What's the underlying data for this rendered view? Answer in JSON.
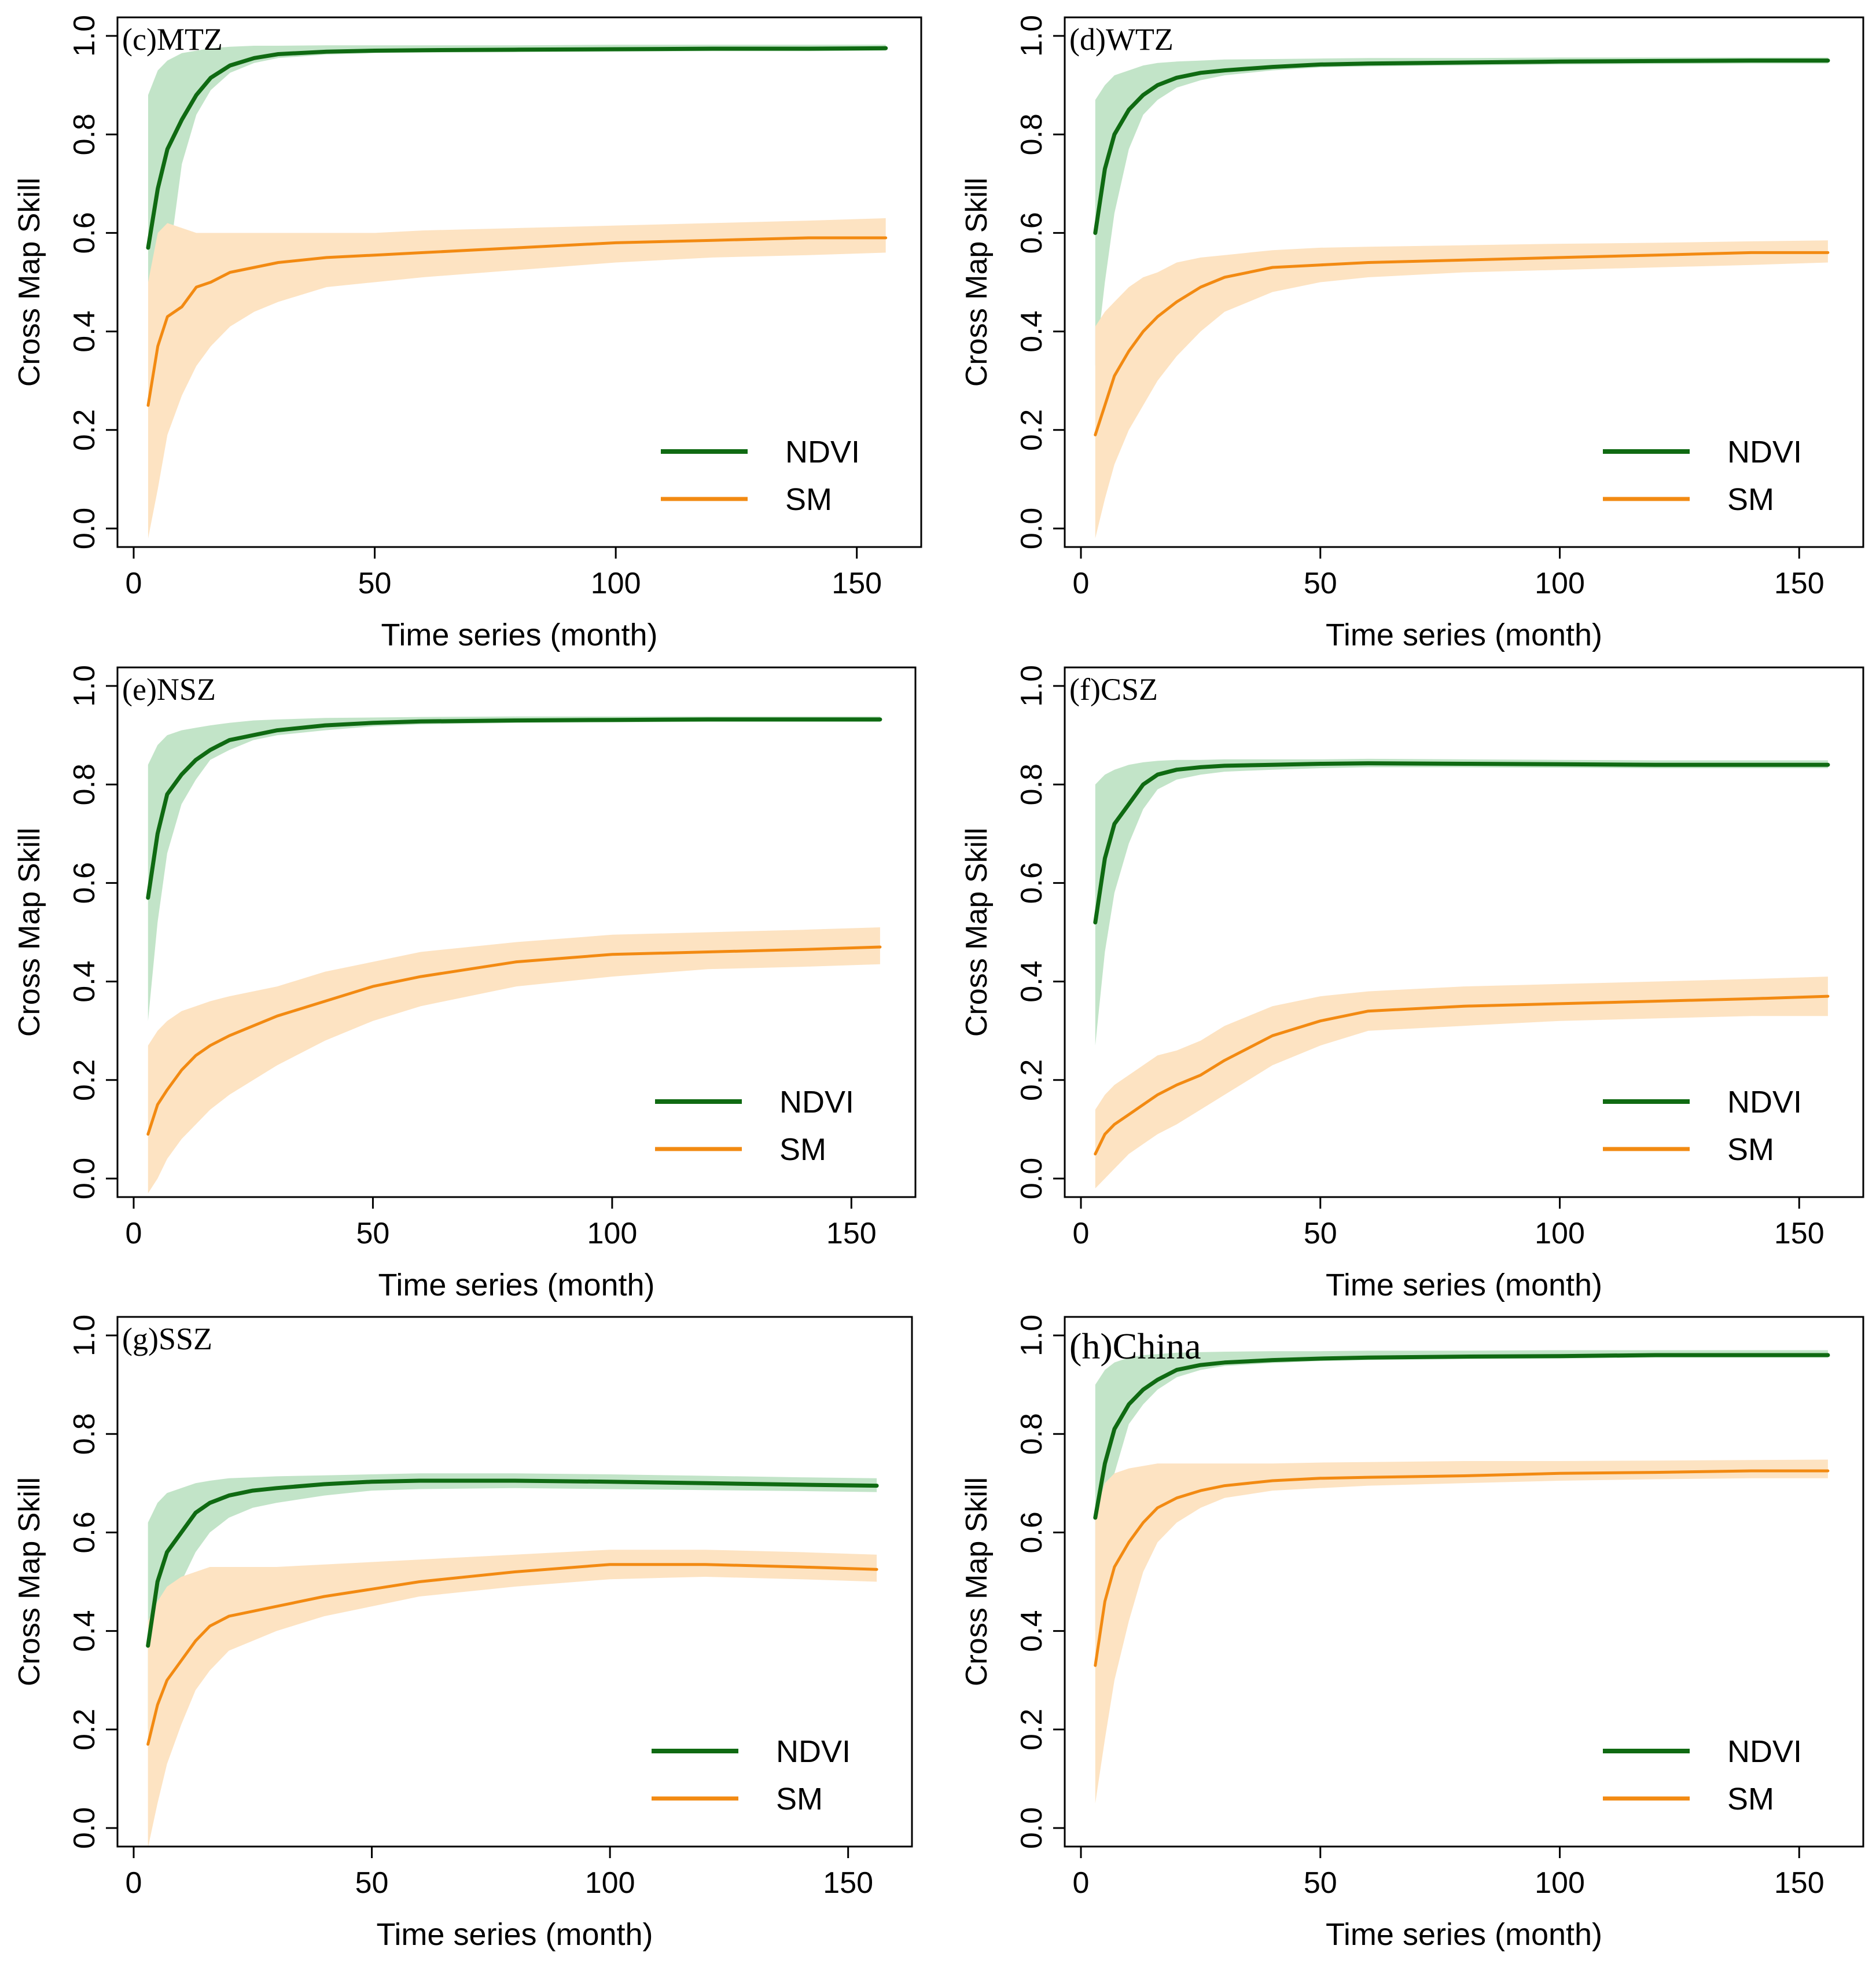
{
  "figure": {
    "y_axis_label": "Cross Map Skill",
    "x_axis_label": "Time series (month)",
    "x_ticks": [
      "0",
      "50",
      "100",
      "150"
    ],
    "y_ticks": [
      "0.0",
      "0.2",
      "0.4",
      "0.6",
      "0.8",
      "1.0"
    ],
    "legend": [
      "NDVI",
      "SM"
    ]
  },
  "colors": {
    "ndvi_line": "#0f6a12",
    "ndvi_band": "#c2e4c8",
    "sm_line": "#f28a12",
    "sm_band": "#fde3c2",
    "axis": "#000000"
  },
  "chart_data": [
    {
      "type": "line",
      "panel": "(c)MTZ",
      "title": "(c)MTZ",
      "xlabel": "Time series (month)",
      "ylabel": "Cross Map Skill",
      "xlim": [
        0,
        160
      ],
      "ylim": [
        0,
        1
      ],
      "legend_position": "bottom-right",
      "series": [
        {
          "name": "NDVI",
          "x": [
            3,
            5,
            7,
            10,
            13,
            16,
            20,
            25,
            30,
            40,
            50,
            60,
            80,
            100,
            120,
            140,
            156
          ],
          "values": [
            0.57,
            0.69,
            0.77,
            0.83,
            0.88,
            0.915,
            0.94,
            0.955,
            0.963,
            0.968,
            0.97,
            0.971,
            0.972,
            0.973,
            0.974,
            0.974,
            0.975
          ],
          "lower": [
            0.02,
            0.2,
            0.52,
            0.74,
            0.84,
            0.89,
            0.925,
            0.945,
            0.955,
            0.962,
            0.965,
            0.966,
            0.967,
            0.968,
            0.969,
            0.969,
            0.97
          ],
          "upper": [
            0.88,
            0.93,
            0.95,
            0.965,
            0.97,
            0.975,
            0.978,
            0.98,
            0.98,
            0.981,
            0.981,
            0.981,
            0.981,
            0.982,
            0.982,
            0.982,
            0.982
          ]
        },
        {
          "name": "SM",
          "x": [
            3,
            5,
            7,
            10,
            13,
            16,
            20,
            25,
            30,
            40,
            50,
            60,
            80,
            100,
            120,
            140,
            156
          ],
          "values": [
            0.25,
            0.37,
            0.43,
            0.45,
            0.49,
            0.5,
            0.52,
            0.53,
            0.54,
            0.55,
            0.555,
            0.56,
            0.57,
            0.58,
            0.585,
            0.59,
            0.59
          ],
          "lower": [
            -0.02,
            0.08,
            0.19,
            0.27,
            0.33,
            0.37,
            0.41,
            0.44,
            0.46,
            0.49,
            0.5,
            0.51,
            0.525,
            0.54,
            0.55,
            0.555,
            0.56
          ],
          "upper": [
            0.5,
            0.6,
            0.62,
            0.61,
            0.6,
            0.6,
            0.6,
            0.6,
            0.6,
            0.6,
            0.6,
            0.605,
            0.61,
            0.615,
            0.62,
            0.625,
            0.63
          ]
        }
      ]
    },
    {
      "type": "line",
      "panel": "(d)WTZ",
      "title": "(d)WTZ",
      "xlabel": "Time series (month)",
      "ylabel": "Cross Map Skill",
      "xlim": [
        0,
        160
      ],
      "ylim": [
        0,
        1
      ],
      "legend_position": "bottom-right",
      "series": [
        {
          "name": "NDVI",
          "x": [
            3,
            5,
            7,
            10,
            13,
            16,
            20,
            25,
            30,
            40,
            50,
            60,
            80,
            100,
            120,
            140,
            156
          ],
          "values": [
            0.6,
            0.73,
            0.8,
            0.85,
            0.88,
            0.9,
            0.915,
            0.925,
            0.93,
            0.937,
            0.942,
            0.944,
            0.946,
            0.948,
            0.949,
            0.95,
            0.95
          ],
          "lower": [
            0.33,
            0.5,
            0.64,
            0.77,
            0.84,
            0.87,
            0.895,
            0.91,
            0.92,
            0.93,
            0.936,
            0.938,
            0.94,
            0.942,
            0.943,
            0.944,
            0.944
          ],
          "upper": [
            0.87,
            0.9,
            0.92,
            0.93,
            0.94,
            0.945,
            0.948,
            0.95,
            0.952,
            0.953,
            0.954,
            0.955,
            0.955,
            0.956,
            0.956,
            0.956,
            0.956
          ]
        },
        {
          "name": "SM",
          "x": [
            3,
            5,
            7,
            10,
            13,
            16,
            20,
            25,
            30,
            40,
            50,
            60,
            80,
            100,
            120,
            140,
            156
          ],
          "values": [
            0.19,
            0.25,
            0.31,
            0.36,
            0.4,
            0.43,
            0.46,
            0.49,
            0.51,
            0.53,
            0.535,
            0.54,
            0.545,
            0.55,
            0.555,
            0.56,
            0.56
          ],
          "lower": [
            -0.02,
            0.06,
            0.13,
            0.2,
            0.25,
            0.3,
            0.35,
            0.4,
            0.44,
            0.48,
            0.5,
            0.51,
            0.52,
            0.525,
            0.53,
            0.535,
            0.54
          ],
          "upper": [
            0.41,
            0.44,
            0.46,
            0.49,
            0.51,
            0.52,
            0.54,
            0.55,
            0.555,
            0.565,
            0.57,
            0.572,
            0.575,
            0.578,
            0.58,
            0.583,
            0.585
          ]
        }
      ]
    },
    {
      "type": "line",
      "panel": "(e)NSZ",
      "title": "(e)NSZ",
      "xlabel": "Time series (month)",
      "ylabel": "Cross Map Skill",
      "xlim": [
        0,
        160
      ],
      "ylim": [
        0,
        1
      ],
      "legend_position": "bottom-right",
      "series": [
        {
          "name": "NDVI",
          "x": [
            3,
            5,
            7,
            10,
            13,
            16,
            20,
            25,
            30,
            40,
            50,
            60,
            80,
            100,
            120,
            140,
            156
          ],
          "values": [
            0.57,
            0.7,
            0.78,
            0.82,
            0.85,
            0.87,
            0.89,
            0.9,
            0.91,
            0.92,
            0.925,
            0.928,
            0.93,
            0.931,
            0.932,
            0.932,
            0.932
          ],
          "lower": [
            0.32,
            0.52,
            0.66,
            0.76,
            0.81,
            0.85,
            0.87,
            0.89,
            0.9,
            0.91,
            0.918,
            0.922,
            0.925,
            0.926,
            0.927,
            0.927,
            0.927
          ],
          "upper": [
            0.84,
            0.88,
            0.9,
            0.91,
            0.915,
            0.92,
            0.925,
            0.93,
            0.932,
            0.935,
            0.936,
            0.937,
            0.938,
            0.938,
            0.938,
            0.938,
            0.938
          ]
        },
        {
          "name": "SM",
          "x": [
            3,
            5,
            7,
            10,
            13,
            16,
            20,
            25,
            30,
            40,
            50,
            60,
            80,
            100,
            120,
            140,
            156
          ],
          "values": [
            0.09,
            0.15,
            0.18,
            0.22,
            0.25,
            0.27,
            0.29,
            0.31,
            0.33,
            0.36,
            0.39,
            0.41,
            0.44,
            0.455,
            0.46,
            0.465,
            0.47
          ],
          "lower": [
            -0.03,
            0.0,
            0.04,
            0.08,
            0.11,
            0.14,
            0.17,
            0.2,
            0.23,
            0.28,
            0.32,
            0.35,
            0.39,
            0.41,
            0.425,
            0.43,
            0.435
          ],
          "upper": [
            0.27,
            0.3,
            0.32,
            0.34,
            0.35,
            0.36,
            0.37,
            0.38,
            0.39,
            0.42,
            0.44,
            0.46,
            0.48,
            0.495,
            0.5,
            0.505,
            0.51
          ]
        }
      ]
    },
    {
      "type": "line",
      "panel": "(f)CSZ",
      "title": "(f)CSZ",
      "xlabel": "Time series (month)",
      "ylabel": "Cross Map Skill",
      "xlim": [
        0,
        160
      ],
      "ylim": [
        0,
        1
      ],
      "legend_position": "bottom-right",
      "series": [
        {
          "name": "NDVI",
          "x": [
            3,
            5,
            7,
            10,
            13,
            16,
            20,
            25,
            30,
            40,
            50,
            60,
            80,
            100,
            120,
            140,
            156
          ],
          "values": [
            0.52,
            0.65,
            0.72,
            0.76,
            0.8,
            0.82,
            0.83,
            0.835,
            0.838,
            0.84,
            0.842,
            0.843,
            0.842,
            0.841,
            0.84,
            0.84,
            0.84
          ],
          "lower": [
            0.27,
            0.46,
            0.58,
            0.68,
            0.75,
            0.79,
            0.81,
            0.82,
            0.826,
            0.83,
            0.833,
            0.835,
            0.835,
            0.834,
            0.833,
            0.833,
            0.833
          ],
          "upper": [
            0.8,
            0.82,
            0.83,
            0.84,
            0.845,
            0.848,
            0.85,
            0.85,
            0.851,
            0.851,
            0.851,
            0.852,
            0.851,
            0.85,
            0.849,
            0.849,
            0.849
          ]
        },
        {
          "name": "SM",
          "x": [
            3,
            5,
            7,
            10,
            13,
            16,
            20,
            25,
            30,
            40,
            50,
            60,
            80,
            100,
            120,
            140,
            156
          ],
          "values": [
            0.05,
            0.09,
            0.11,
            0.13,
            0.15,
            0.17,
            0.19,
            0.21,
            0.24,
            0.29,
            0.32,
            0.34,
            0.35,
            0.355,
            0.36,
            0.365,
            0.37
          ],
          "lower": [
            -0.02,
            0.0,
            0.02,
            0.05,
            0.07,
            0.09,
            0.11,
            0.14,
            0.17,
            0.23,
            0.27,
            0.3,
            0.31,
            0.32,
            0.325,
            0.33,
            0.33
          ],
          "upper": [
            0.14,
            0.17,
            0.19,
            0.21,
            0.23,
            0.25,
            0.26,
            0.28,
            0.31,
            0.35,
            0.37,
            0.38,
            0.39,
            0.395,
            0.4,
            0.405,
            0.41
          ]
        }
      ]
    },
    {
      "type": "line",
      "panel": "(g)SSZ",
      "title": "(g)SSZ",
      "xlabel": "Time series (month)",
      "ylabel": "Cross Map Skill",
      "xlim": [
        0,
        160
      ],
      "ylim": [
        0,
        1
      ],
      "legend_position": "bottom-right",
      "series": [
        {
          "name": "NDVI",
          "x": [
            3,
            5,
            7,
            10,
            13,
            16,
            20,
            25,
            30,
            40,
            50,
            60,
            80,
            100,
            120,
            140,
            156
          ],
          "values": [
            0.37,
            0.5,
            0.56,
            0.6,
            0.64,
            0.66,
            0.675,
            0.685,
            0.69,
            0.698,
            0.703,
            0.705,
            0.705,
            0.703,
            0.7,
            0.697,
            0.695
          ],
          "lower": [
            0.2,
            0.34,
            0.42,
            0.5,
            0.56,
            0.6,
            0.63,
            0.65,
            0.66,
            0.675,
            0.685,
            0.688,
            0.69,
            0.688,
            0.686,
            0.684,
            0.682
          ],
          "upper": [
            0.62,
            0.66,
            0.68,
            0.69,
            0.7,
            0.705,
            0.71,
            0.712,
            0.714,
            0.716,
            0.718,
            0.72,
            0.72,
            0.718,
            0.715,
            0.712,
            0.71
          ]
        },
        {
          "name": "SM",
          "x": [
            3,
            5,
            7,
            10,
            13,
            16,
            20,
            25,
            30,
            40,
            50,
            60,
            80,
            100,
            120,
            140,
            156
          ],
          "values": [
            0.17,
            0.25,
            0.3,
            0.34,
            0.38,
            0.41,
            0.43,
            0.44,
            0.45,
            0.47,
            0.485,
            0.5,
            0.52,
            0.535,
            0.535,
            0.53,
            0.525
          ],
          "lower": [
            -0.04,
            0.05,
            0.13,
            0.21,
            0.28,
            0.32,
            0.36,
            0.38,
            0.4,
            0.43,
            0.45,
            0.47,
            0.49,
            0.505,
            0.51,
            0.505,
            0.5
          ],
          "upper": [
            0.42,
            0.46,
            0.49,
            0.51,
            0.52,
            0.53,
            0.53,
            0.53,
            0.53,
            0.535,
            0.54,
            0.545,
            0.555,
            0.565,
            0.565,
            0.56,
            0.555
          ]
        }
      ]
    },
    {
      "type": "line",
      "panel": "(h)China",
      "title": "(h)China",
      "xlabel": "Time series (month)",
      "ylabel": "Cross Map Skill",
      "xlim": [
        0,
        160
      ],
      "ylim": [
        0,
        1
      ],
      "legend_position": "bottom-right",
      "series": [
        {
          "name": "NDVI",
          "x": [
            3,
            5,
            7,
            10,
            13,
            16,
            20,
            25,
            30,
            40,
            50,
            60,
            80,
            100,
            120,
            140,
            156
          ],
          "values": [
            0.63,
            0.74,
            0.81,
            0.86,
            0.89,
            0.91,
            0.93,
            0.94,
            0.945,
            0.95,
            0.953,
            0.955,
            0.957,
            0.958,
            0.96,
            0.96,
            0.96
          ],
          "lower": [
            0.4,
            0.6,
            0.72,
            0.82,
            0.86,
            0.89,
            0.915,
            0.93,
            0.938,
            0.944,
            0.948,
            0.95,
            0.952,
            0.953,
            0.955,
            0.955,
            0.955
          ],
          "upper": [
            0.9,
            0.93,
            0.945,
            0.955,
            0.96,
            0.962,
            0.965,
            0.966,
            0.967,
            0.968,
            0.968,
            0.969,
            0.969,
            0.97,
            0.97,
            0.97,
            0.97
          ]
        },
        {
          "name": "SM",
          "x": [
            3,
            5,
            7,
            10,
            13,
            16,
            20,
            25,
            30,
            40,
            50,
            60,
            80,
            100,
            120,
            140,
            156
          ],
          "values": [
            0.33,
            0.46,
            0.53,
            0.58,
            0.62,
            0.65,
            0.67,
            0.685,
            0.695,
            0.705,
            0.71,
            0.712,
            0.715,
            0.72,
            0.722,
            0.725,
            0.725
          ],
          "lower": [
            0.05,
            0.18,
            0.3,
            0.42,
            0.52,
            0.58,
            0.62,
            0.65,
            0.67,
            0.685,
            0.69,
            0.695,
            0.7,
            0.705,
            0.708,
            0.71,
            0.71
          ],
          "upper": [
            0.64,
            0.7,
            0.72,
            0.73,
            0.735,
            0.74,
            0.74,
            0.74,
            0.74,
            0.74,
            0.742,
            0.743,
            0.745,
            0.745,
            0.746,
            0.747,
            0.748
          ]
        }
      ]
    }
  ]
}
